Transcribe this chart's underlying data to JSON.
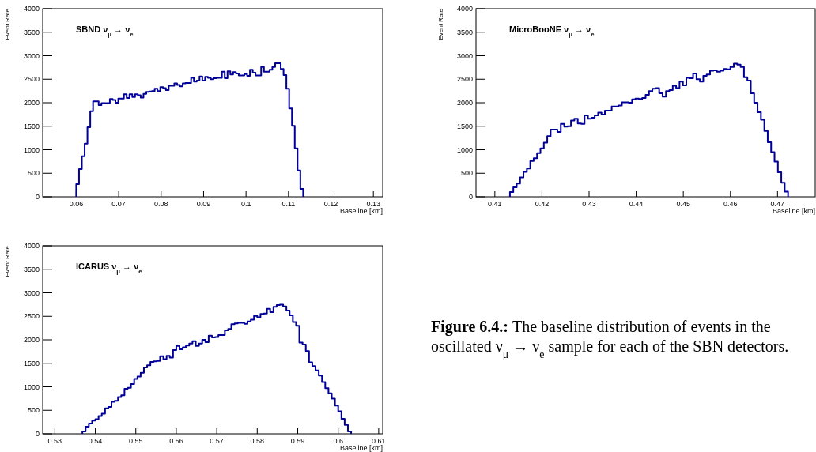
{
  "chart_data": [
    {
      "type": "histogram",
      "title": "SBND ν$_{μ}$ → ν$_{e}$",
      "xlabel": "Baseline [km]",
      "ylabel": "Event Rate",
      "color": "#000099",
      "xlim": [
        0.0521,
        0.1322
      ],
      "ylim": [
        0,
        4000
      ],
      "xticks": [
        0.06,
        0.07,
        0.08,
        0.09,
        0.1,
        0.11,
        0.12,
        0.13
      ],
      "yticks": [
        0,
        500,
        1000,
        1500,
        2000,
        2500,
        3000,
        3500,
        4000
      ],
      "bins": [
        0.06,
        0.06066,
        0.06132,
        0.06198,
        0.06264,
        0.0633,
        0.06396,
        0.06462,
        0.06528,
        0.06594,
        0.0666,
        0.06726,
        0.06792,
        0.06858,
        0.06924,
        0.0699,
        0.07056,
        0.07122,
        0.07188,
        0.07254,
        0.0732,
        0.07386,
        0.07452,
        0.07518,
        0.07584,
        0.0765,
        0.07716,
        0.07782,
        0.07848,
        0.07914,
        0.0798,
        0.08046,
        0.08112,
        0.08178,
        0.08244,
        0.0831,
        0.08376,
        0.08442,
        0.08508,
        0.08574,
        0.0864,
        0.08706,
        0.08772,
        0.08838,
        0.08904,
        0.0897,
        0.09036,
        0.09102,
        0.09168,
        0.09234,
        0.093,
        0.09366,
        0.09432,
        0.09498,
        0.09564,
        0.0963,
        0.09696,
        0.09762,
        0.09828,
        0.09894,
        0.0996,
        0.10026,
        0.10092,
        0.10158,
        0.10224,
        0.1029,
        0.10356,
        0.10422,
        0.10488,
        0.10554,
        0.1062,
        0.10686,
        0.10752,
        0.10818,
        0.10884,
        0.1095,
        0.11016,
        0.11082,
        0.11148,
        0.11214,
        0.1128,
        0.11346
      ],
      "values": [
        270,
        590,
        860,
        1130,
        1480,
        1820,
        2030,
        2030,
        1950,
        1990,
        1990,
        1990,
        2080,
        2060,
        2000,
        2090,
        2090,
        2180,
        2100,
        2180,
        2120,
        2180,
        2160,
        2110,
        2190,
        2230,
        2240,
        2250,
        2300,
        2250,
        2330,
        2310,
        2270,
        2360,
        2360,
        2410,
        2380,
        2350,
        2410,
        2420,
        2420,
        2530,
        2450,
        2470,
        2560,
        2470,
        2550,
        2530,
        2500,
        2520,
        2530,
        2530,
        2660,
        2520,
        2670,
        2600,
        2650,
        2620,
        2580,
        2580,
        2610,
        2570,
        2700,
        2640,
        2580,
        2580,
        2760,
        2660,
        2660,
        2700,
        2760,
        2840,
        2840,
        2720,
        2590,
        2300,
        1880,
        1510,
        1030,
        560,
        170
      ]
    },
    {
      "type": "histogram",
      "title": "MicroBooNE ν$_{μ}$ → ν$_{e}$",
      "xlabel": "Baseline [km]",
      "ylabel": "Event Rate",
      "color": "#000099",
      "xlim": [
        0.406,
        0.478
      ],
      "ylim": [
        0,
        4000
      ],
      "xticks": [
        0.41,
        0.42,
        0.43,
        0.44,
        0.45,
        0.46,
        0.47
      ],
      "yticks": [
        0,
        500,
        1000,
        1500,
        2000,
        2500,
        3000,
        3500,
        4000
      ],
      "bins": [
        0.4132,
        0.41392,
        0.41464,
        0.41536,
        0.41608,
        0.4168,
        0.41752,
        0.41824,
        0.41896,
        0.41968,
        0.4204,
        0.42112,
        0.42184,
        0.42256,
        0.42328,
        0.424,
        0.42472,
        0.42544,
        0.42616,
        0.42688,
        0.4276,
        0.42832,
        0.42904,
        0.42976,
        0.43048,
        0.4312,
        0.43192,
        0.43264,
        0.43336,
        0.43408,
        0.4348,
        0.43552,
        0.43624,
        0.43696,
        0.43768,
        0.4384,
        0.43912,
        0.43984,
        0.44056,
        0.44128,
        0.442,
        0.44272,
        0.44344,
        0.44416,
        0.44488,
        0.4456,
        0.44632,
        0.44704,
        0.44776,
        0.44848,
        0.4492,
        0.44992,
        0.45064,
        0.45136,
        0.45208,
        0.4528,
        0.45352,
        0.45424,
        0.45496,
        0.45568,
        0.4564,
        0.45712,
        0.45784,
        0.45856,
        0.45928,
        0.46,
        0.46072,
        0.46144,
        0.46216,
        0.46288,
        0.4636,
        0.46432,
        0.46504,
        0.46576,
        0.46648,
        0.4672,
        0.46792,
        0.46864,
        0.46936,
        0.47008,
        0.4708,
        0.47152,
        0.47224
      ],
      "values": [
        100,
        200,
        280,
        410,
        530,
        600,
        760,
        820,
        930,
        1030,
        1150,
        1290,
        1430,
        1430,
        1380,
        1550,
        1490,
        1500,
        1620,
        1660,
        1560,
        1550,
        1730,
        1660,
        1680,
        1730,
        1790,
        1750,
        1830,
        1830,
        1920,
        1920,
        1940,
        2010,
        2010,
        2000,
        2070,
        2090,
        2080,
        2100,
        2170,
        2250,
        2300,
        2310,
        2200,
        2130,
        2250,
        2270,
        2360,
        2310,
        2450,
        2370,
        2530,
        2520,
        2620,
        2500,
        2450,
        2570,
        2600,
        2680,
        2690,
        2660,
        2680,
        2720,
        2710,
        2760,
        2830,
        2810,
        2760,
        2540,
        2470,
        2200,
        2000,
        1800,
        1640,
        1400,
        1160,
        950,
        750,
        520,
        300,
        110
      ]
    },
    {
      "type": "histogram",
      "title": "ICARUS ν$_{μ}$ → ν$_{e}$",
      "xlabel": "Baseline [km]",
      "ylabel": "Event Rate",
      "color": "#000099",
      "xlim": [
        0.527,
        0.611
      ],
      "ylim": [
        0,
        4000
      ],
      "xticks": [
        0.53,
        0.54,
        0.55,
        0.56,
        0.57,
        0.58,
        0.59,
        0.6,
        0.61
      ],
      "yticks": [
        0,
        500,
        1000,
        1500,
        2000,
        2500,
        3000,
        3500,
        4000
      ],
      "bins": [
        0.5368,
        0.5376,
        0.5384,
        0.5392,
        0.54,
        0.5408,
        0.5416,
        0.5424,
        0.5432,
        0.544,
        0.5448,
        0.5456,
        0.5464,
        0.5472,
        0.548,
        0.5488,
        0.5496,
        0.5504,
        0.5512,
        0.552,
        0.5528,
        0.5536,
        0.5544,
        0.5552,
        0.556,
        0.5568,
        0.5576,
        0.5584,
        0.5592,
        0.56,
        0.5608,
        0.5616,
        0.5624,
        0.5632,
        0.564,
        0.5648,
        0.5656,
        0.5664,
        0.5672,
        0.568,
        0.5688,
        0.5696,
        0.5704,
        0.5712,
        0.572,
        0.5728,
        0.5736,
        0.5744,
        0.5752,
        0.576,
        0.5768,
        0.5776,
        0.5784,
        0.5792,
        0.58,
        0.5808,
        0.5816,
        0.5824,
        0.5832,
        0.584,
        0.5848,
        0.5856,
        0.5864,
        0.5872,
        0.588,
        0.5888,
        0.5896,
        0.5904,
        0.5912,
        0.592,
        0.5928,
        0.5936,
        0.5944,
        0.5952,
        0.596,
        0.5968,
        0.5976,
        0.5984,
        0.5992,
        0.6,
        0.6008,
        0.6016,
        0.6024,
        0.6032
      ],
      "values": [
        50,
        150,
        220,
        280,
        310,
        380,
        430,
        540,
        570,
        680,
        700,
        780,
        820,
        960,
        980,
        1060,
        1170,
        1220,
        1300,
        1410,
        1460,
        1530,
        1540,
        1550,
        1650,
        1590,
        1660,
        1620,
        1780,
        1870,
        1800,
        1840,
        1880,
        1920,
        1970,
        1870,
        1920,
        2000,
        1950,
        2090,
        2050,
        2060,
        2100,
        2100,
        2200,
        2230,
        2330,
        2350,
        2360,
        2360,
        2340,
        2390,
        2430,
        2510,
        2480,
        2550,
        2560,
        2660,
        2590,
        2700,
        2740,
        2750,
        2710,
        2620,
        2520,
        2380,
        2300,
        1940,
        1900,
        1760,
        1520,
        1440,
        1350,
        1240,
        1100,
        970,
        860,
        750,
        600,
        480,
        320,
        190,
        50
      ]
    },
    {
      "type": "other",
      "title": "Figure 6.4.:",
      "annotations": [
        "The baseline distribution of events in the oscillated ν$_{μ}$ → ν$_{e}$ sample for each of the SBN detectors."
      ]
    }
  ]
}
